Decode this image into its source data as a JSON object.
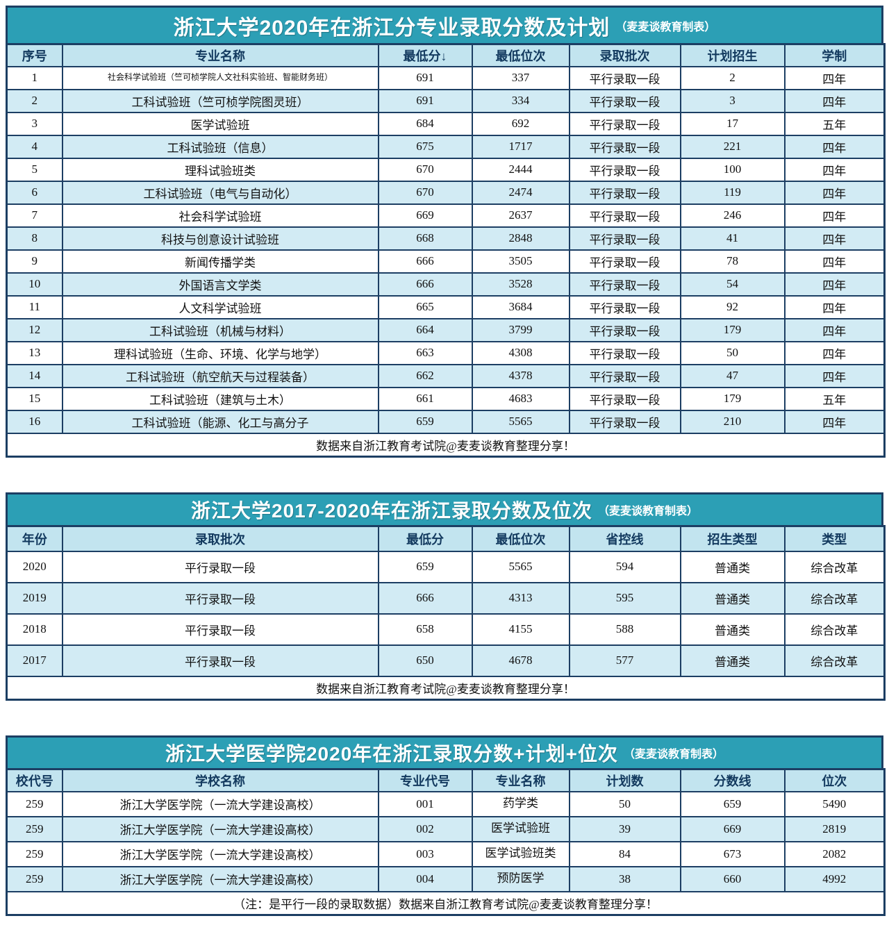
{
  "colors": {
    "title_bg": "#2C9FB5",
    "header_bg": "#C2E4EF",
    "row_alt_bg": "#D2EBF4",
    "border": "#1C3E63",
    "header_text": "#12395E",
    "body_text": "#111111"
  },
  "chart_data": [
    {
      "type": "table",
      "title": "浙江大学2020年在浙江分专业录取分数及计划",
      "title_suffix": "（麦麦谈教育制表）",
      "columns": [
        "序号",
        "专业名称",
        "最低分↓",
        "最低位次",
        "录取批次",
        "计划招生",
        "学制"
      ],
      "rows": [
        [
          "1",
          "社会科学试验班（竺可桢学院人文社科实验班、智能财务班）",
          "691",
          "337",
          "平行录取一段",
          "2",
          "四年"
        ],
        [
          "2",
          "工科试验班（竺可桢学院图灵班）",
          "691",
          "334",
          "平行录取一段",
          "3",
          "四年"
        ],
        [
          "3",
          "医学试验班",
          "684",
          "692",
          "平行录取一段",
          "17",
          "五年"
        ],
        [
          "4",
          "工科试验班（信息）",
          "675",
          "1717",
          "平行录取一段",
          "221",
          "四年"
        ],
        [
          "5",
          "理科试验班类",
          "670",
          "2444",
          "平行录取一段",
          "100",
          "四年"
        ],
        [
          "6",
          "工科试验班（电气与自动化）",
          "670",
          "2474",
          "平行录取一段",
          "119",
          "四年"
        ],
        [
          "7",
          "社会科学试验班",
          "669",
          "2637",
          "平行录取一段",
          "246",
          "四年"
        ],
        [
          "8",
          "科技与创意设计试验班",
          "668",
          "2848",
          "平行录取一段",
          "41",
          "四年"
        ],
        [
          "9",
          "新闻传播学类",
          "666",
          "3505",
          "平行录取一段",
          "78",
          "四年"
        ],
        [
          "10",
          "外国语言文学类",
          "666",
          "3528",
          "平行录取一段",
          "54",
          "四年"
        ],
        [
          "11",
          "人文科学试验班",
          "665",
          "3684",
          "平行录取一段",
          "92",
          "四年"
        ],
        [
          "12",
          "工科试验班（机械与材料）",
          "664",
          "3799",
          "平行录取一段",
          "179",
          "四年"
        ],
        [
          "13",
          "理科试验班（生命、环境、化学与地学）",
          "663",
          "4308",
          "平行录取一段",
          "50",
          "四年"
        ],
        [
          "14",
          "工科试验班（航空航天与过程装备）",
          "662",
          "4378",
          "平行录取一段",
          "47",
          "四年"
        ],
        [
          "15",
          "工科试验班（建筑与土木）",
          "661",
          "4683",
          "平行录取一段",
          "179",
          "五年"
        ],
        [
          "16",
          "工科试验班（能源、化工与高分子",
          "659",
          "5565",
          "平行录取一段",
          "210",
          "四年"
        ]
      ],
      "footer": "数据来自浙江教育考试院@麦麦谈教育整理分享！"
    },
    {
      "type": "table",
      "title": "浙江大学2017-2020年在浙江录取分数及位次",
      "title_suffix": "（麦麦谈教育制表）",
      "columns": [
        "年份",
        "录取批次",
        "最低分",
        "最低位次",
        "省控线",
        "招生类型",
        "类型"
      ],
      "rows": [
        [
          "2020",
          "平行录取一段",
          "659",
          "5565",
          "594",
          "普通类",
          "综合改革"
        ],
        [
          "2019",
          "平行录取一段",
          "666",
          "4313",
          "595",
          "普通类",
          "综合改革"
        ],
        [
          "2018",
          "平行录取一段",
          "658",
          "4155",
          "588",
          "普通类",
          "综合改革"
        ],
        [
          "2017",
          "平行录取一段",
          "650",
          "4678",
          "577",
          "普通类",
          "综合改革"
        ]
      ],
      "footer": "数据来自浙江教育考试院@麦麦谈教育整理分享！"
    },
    {
      "type": "table",
      "title": "浙江大学医学院2020年在浙江录取分数+计划+位次",
      "title_suffix": "（麦麦谈教育制表）",
      "columns": [
        "校代号",
        "学校名称",
        "专业代号",
        "专业名称",
        "计划数",
        "分数线",
        "位次"
      ],
      "rows": [
        [
          "259",
          "浙江大学医学院（一流大学建设高校）",
          "001",
          "药学类",
          "50",
          "659",
          "5490"
        ],
        [
          "259",
          "浙江大学医学院（一流大学建设高校）",
          "002",
          "医学试验班",
          "39",
          "669",
          "2819"
        ],
        [
          "259",
          "浙江大学医学院（一流大学建设高校）",
          "003",
          "医学试验班类",
          "84",
          "673",
          "2082"
        ],
        [
          "259",
          "浙江大学医学院（一流大学建设高校）",
          "004",
          "预防医学",
          "38",
          "660",
          "4992"
        ]
      ],
      "footer": "（注：是平行一段的录取数据）数据来自浙江教育考试院@麦麦谈教育整理分享！"
    }
  ]
}
